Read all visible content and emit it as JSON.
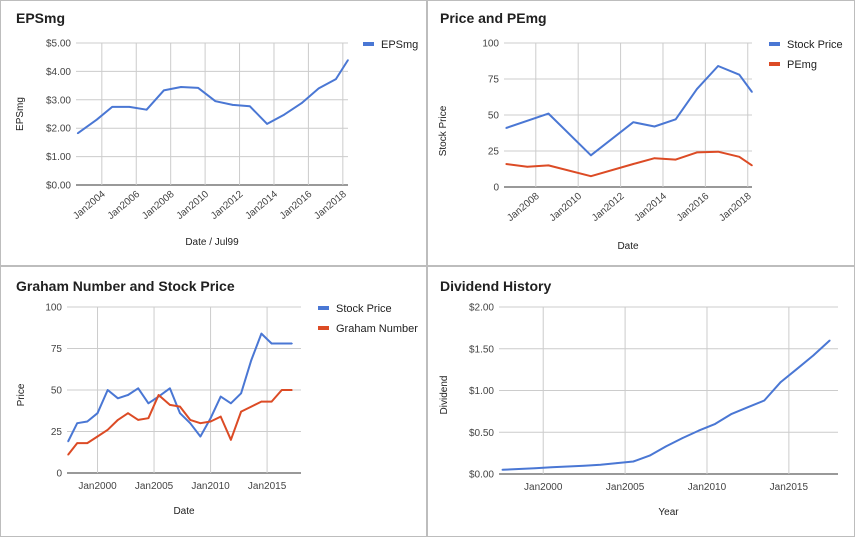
{
  "colors": {
    "blue": "#4a77d4",
    "red": "#dc4b25",
    "grid": "#cccccc",
    "baseline": "#333333"
  },
  "chart_data": [
    {
      "type": "line",
      "title": "EPSmg",
      "xlabel": "Date / Jul99",
      "ylabel": "EPSmg",
      "ylim": [
        0,
        5
      ],
      "y_ticks": [
        "$0.00",
        "$1.00",
        "$2.00",
        "$3.00",
        "$4.00",
        "$5.00"
      ],
      "y_tick_values": [
        0,
        1,
        2,
        3,
        4,
        5
      ],
      "xlim": [
        2002.5,
        2018.3
      ],
      "x_ticks": [
        "Jan2004",
        "Jan2006",
        "Jan2008",
        "Jan2010",
        "Jan2012",
        "Jan2014",
        "Jan2016",
        "Jan2018"
      ],
      "x_tick_values": [
        2004,
        2006,
        2008,
        2010,
        2012,
        2014,
        2016,
        2018
      ],
      "x_tick_rotate": true,
      "grid": true,
      "legend": "right",
      "series": [
        {
          "name": "EPSmg",
          "color": "#4a77d4",
          "x": [
            2002.6,
            2003.7,
            2004.6,
            2005.6,
            2006.6,
            2007.6,
            2008.6,
            2009.6,
            2010.6,
            2011.6,
            2012.6,
            2013.6,
            2014.6,
            2015.6,
            2016.6,
            2017.6,
            2018.3
          ],
          "y": [
            1.82,
            2.3,
            2.75,
            2.75,
            2.65,
            3.33,
            3.45,
            3.42,
            2.95,
            2.82,
            2.77,
            2.15,
            2.48,
            2.88,
            3.4,
            3.73,
            4.4
          ]
        }
      ]
    },
    {
      "type": "line",
      "title": "Price and PEmg",
      "xlabel": "Date",
      "ylabel": "Stock Price",
      "ylim": [
        0,
        100
      ],
      "y_ticks": [
        "0",
        "25",
        "50",
        "75",
        "100"
      ],
      "y_tick_values": [
        0,
        25,
        50,
        75,
        100
      ],
      "xlim": [
        2006.5,
        2018.2
      ],
      "x_ticks": [
        "Jan2008",
        "Jan2010",
        "Jan2012",
        "Jan2014",
        "Jan2016",
        "Jan2018"
      ],
      "x_tick_values": [
        2008,
        2010,
        2012,
        2014,
        2016,
        2018
      ],
      "x_tick_rotate": true,
      "grid": true,
      "legend": "right",
      "series": [
        {
          "name": "Stock Price",
          "color": "#4a77d4",
          "x": [
            2006.6,
            2008.6,
            2010.6,
            2012.6,
            2013.6,
            2014.6,
            2015.6,
            2016.6,
            2017.6,
            2018.2
          ],
          "y": [
            41,
            51,
            22,
            45,
            42,
            47,
            68,
            84,
            78,
            66
          ]
        },
        {
          "name": "PEmg",
          "color": "#dc4b25",
          "x": [
            2006.6,
            2007.6,
            2008.6,
            2010.6,
            2012.6,
            2013.6,
            2014.6,
            2015.6,
            2016.6,
            2017.6,
            2018.2
          ],
          "y": [
            16,
            14,
            15,
            7.5,
            16,
            20,
            19,
            24,
            24.5,
            21,
            15
          ]
        }
      ]
    },
    {
      "type": "line",
      "title": "Graham Number and Stock Price",
      "xlabel": "Date",
      "ylabel": "Price",
      "ylim": [
        0,
        100
      ],
      "y_ticks": [
        "0",
        "25",
        "50",
        "75",
        "100"
      ],
      "y_tick_values": [
        0,
        25,
        50,
        75,
        100
      ],
      "xlim": [
        1997.3,
        2018.0
      ],
      "x_ticks": [
        "Jan2000",
        "Jan2005",
        "Jan2010",
        "Jan2015"
      ],
      "x_tick_values": [
        2000,
        2005,
        2010,
        2015
      ],
      "x_tick_rotate": false,
      "grid": true,
      "legend": "right",
      "series": [
        {
          "name": "Stock Price",
          "color": "#4a77d4",
          "x": [
            1997.4,
            1998.2,
            1999.1,
            2000.0,
            2000.9,
            2001.8,
            2002.7,
            2003.6,
            2004.5,
            2005.4,
            2006.4,
            2007.3,
            2008.2,
            2009.1,
            2010.0,
            2010.9,
            2011.8,
            2012.7,
            2013.6,
            2014.5,
            2015.4,
            2016.3,
            2017.2
          ],
          "y": [
            19,
            30,
            31,
            36,
            50,
            45,
            47,
            51,
            42,
            46,
            51,
            36,
            30,
            22,
            33,
            46,
            42,
            48,
            68,
            84,
            78,
            78,
            78
          ]
        },
        {
          "name": "Graham Number",
          "color": "#dc4b25",
          "x": [
            1997.4,
            1998.2,
            1999.1,
            2000.0,
            2000.9,
            2001.8,
            2002.7,
            2003.6,
            2004.5,
            2005.4,
            2006.4,
            2007.3,
            2008.2,
            2009.1,
            2010.0,
            2010.9,
            2011.8,
            2012.7,
            2013.6,
            2014.5,
            2015.4,
            2016.3,
            2017.2
          ],
          "y": [
            11,
            18,
            18,
            22,
            26,
            32,
            36,
            32,
            33,
            47,
            41,
            40,
            32,
            30,
            31,
            34,
            20,
            37,
            40,
            43,
            43,
            50,
            50
          ]
        }
      ]
    },
    {
      "type": "line",
      "title": "Dividend History",
      "xlabel": "Year",
      "ylabel": "Dividend",
      "ylim": [
        0,
        2
      ],
      "y_ticks": [
        "$0.00",
        "$0.50",
        "$1.00",
        "$1.50",
        "$2.00"
      ],
      "y_tick_values": [
        0,
        0.5,
        1,
        1.5,
        2
      ],
      "xlim": [
        1997.3,
        2018.0
      ],
      "x_ticks": [
        "Jan2000",
        "Jan2005",
        "Jan2010",
        "Jan2015"
      ],
      "x_tick_values": [
        2000,
        2005,
        2010,
        2015
      ],
      "x_tick_rotate": false,
      "grid": true,
      "legend": "none",
      "series": [
        {
          "name": "",
          "color": "#4a77d4",
          "x": [
            1997.5,
            1998.5,
            1999.5,
            2000.5,
            2001.5,
            2002.5,
            2003.5,
            2004.5,
            2005.5,
            2006.5,
            2007.5,
            2008.5,
            2009.5,
            2010.5,
            2011.5,
            2012.5,
            2013.5,
            2014.5,
            2015.5,
            2016.5,
            2017.5
          ],
          "y": [
            0.05,
            0.06,
            0.07,
            0.08,
            0.09,
            0.1,
            0.11,
            0.13,
            0.15,
            0.22,
            0.33,
            0.43,
            0.52,
            0.6,
            0.72,
            0.8,
            0.88,
            1.1,
            1.26,
            1.42,
            1.6
          ]
        }
      ]
    }
  ]
}
